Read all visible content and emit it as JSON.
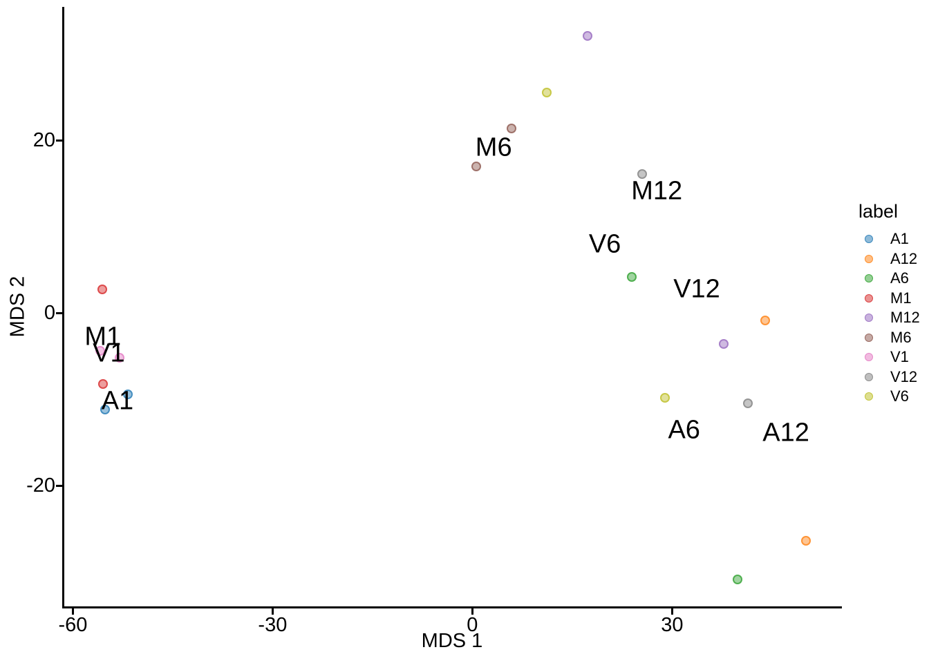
{
  "chart_data": {
    "type": "scatter",
    "title": "",
    "xlabel": "MDS 1",
    "ylabel": "MDS 2",
    "xlim": [
      -61.6,
      55.5
    ],
    "ylim": [
      -34.0,
      35.44
    ],
    "xticks": [
      -60,
      -30,
      0,
      30
    ],
    "yticks": [
      -20,
      0,
      20
    ],
    "grid": false,
    "point_alpha": 0.45,
    "background": "#ffffff",
    "axis_color": "#000000",
    "legend": {
      "title": "label",
      "position": "right",
      "entries": [
        {
          "label": "A1",
          "color": "#1f77b4"
        },
        {
          "label": "A12",
          "color": "#ff7f0e"
        },
        {
          "label": "A6",
          "color": "#2ca02c"
        },
        {
          "label": "M1",
          "color": "#d62728"
        },
        {
          "label": "M12",
          "color": "#9467bd"
        },
        {
          "label": "M6",
          "color": "#8c564b"
        },
        {
          "label": "V1",
          "color": "#e377c2"
        },
        {
          "label": "V12",
          "color": "#7f7f7f"
        },
        {
          "label": "V6",
          "color": "#bcbd22"
        }
      ]
    },
    "series": [
      {
        "name": "A1",
        "color": "#1f77b4",
        "points": [
          [
            -51.7,
            -9.4
          ],
          [
            -55.2,
            -11.2
          ]
        ]
      },
      {
        "name": "A12",
        "color": "#ff7f0e",
        "points": [
          [
            44.0,
            -0.9
          ],
          [
            50.1,
            -26.4
          ]
        ]
      },
      {
        "name": "A6",
        "color": "#2ca02c",
        "points": [
          [
            23.9,
            4.2
          ],
          [
            39.8,
            -30.9
          ]
        ]
      },
      {
        "name": "M1",
        "color": "#d62728",
        "points": [
          [
            -55.6,
            2.7
          ],
          [
            -55.5,
            -8.2
          ]
        ]
      },
      {
        "name": "M12",
        "color": "#9467bd",
        "points": [
          [
            17.3,
            32.1
          ],
          [
            37.8,
            -3.6
          ]
        ]
      },
      {
        "name": "M6",
        "color": "#8c564b",
        "points": [
          [
            5.9,
            21.4
          ],
          [
            0.6,
            17.0
          ]
        ]
      },
      {
        "name": "V1",
        "color": "#e377c2",
        "points": [
          [
            -55.9,
            -4.4
          ],
          [
            -53.0,
            -5.2
          ]
        ]
      },
      {
        "name": "V12",
        "color": "#7f7f7f",
        "points": [
          [
            25.5,
            16.1
          ],
          [
            41.4,
            -10.5
          ]
        ]
      },
      {
        "name": "V6",
        "color": "#bcbd22",
        "points": [
          [
            11.2,
            25.5
          ],
          [
            28.9,
            -9.8
          ]
        ]
      }
    ],
    "annotations": [
      {
        "text": "M1",
        "x": -55.5,
        "y": -2.8
      },
      {
        "text": "V1",
        "x": -54.6,
        "y": -4.7
      },
      {
        "text": "A1",
        "x": -53.3,
        "y": -10.2
      },
      {
        "text": "M6",
        "x": 3.2,
        "y": 19.1
      },
      {
        "text": "M12",
        "x": 27.7,
        "y": 14.1
      },
      {
        "text": "V6",
        "x": 19.9,
        "y": 7.9
      },
      {
        "text": "V12",
        "x": 33.7,
        "y": 2.7
      },
      {
        "text": "A6",
        "x": 31.8,
        "y": -13.6
      },
      {
        "text": "A12",
        "x": 47.1,
        "y": -13.9
      }
    ]
  }
}
